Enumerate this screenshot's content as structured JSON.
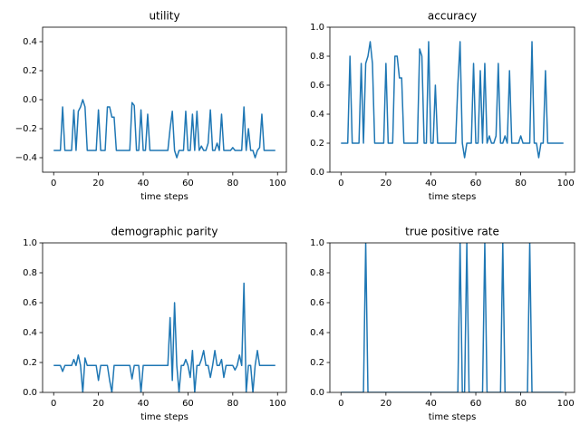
{
  "chart_data": [
    {
      "type": "line",
      "title": "utility",
      "xlabel": "time steps",
      "color": "#1f77b4",
      "xlim": [
        -4.95,
        103.95
      ],
      "xticks": [
        0,
        20,
        40,
        60,
        80,
        100
      ],
      "ylim": [
        -0.5,
        0.5
      ],
      "yticks": [
        {
          "value": -0.4,
          "label": "−0.4"
        },
        {
          "value": -0.2,
          "label": "−0.2"
        },
        {
          "value": 0,
          "label": "0.0"
        },
        0.2,
        0.4
      ],
      "values": [
        -0.35,
        -0.35,
        -0.35,
        -0.35,
        -0.05,
        -0.35,
        -0.35,
        -0.35,
        -0.35,
        -0.07,
        -0.35,
        -0.08,
        -0.05,
        0,
        -0.05,
        -0.35,
        -0.35,
        -0.35,
        -0.35,
        -0.35,
        -0.07,
        -0.35,
        -0.35,
        -0.35,
        -0.05,
        -0.05,
        -0.12,
        -0.12,
        -0.35,
        -0.35,
        -0.35,
        -0.35,
        -0.35,
        -0.35,
        -0.35,
        -0.02,
        -0.04,
        -0.35,
        -0.35,
        -0.07,
        -0.35,
        -0.35,
        -0.1,
        -0.35,
        -0.35,
        -0.35,
        -0.35,
        -0.35,
        -0.35,
        -0.35,
        -0.35,
        -0.35,
        -0.2,
        -0.08,
        -0.35,
        -0.4,
        -0.35,
        -0.35,
        -0.35,
        -0.08,
        -0.35,
        -0.35,
        -0.1,
        -0.35,
        -0.08,
        -0.35,
        -0.32,
        -0.35,
        -0.35,
        -0.3,
        -0.07,
        -0.35,
        -0.35,
        -0.3,
        -0.35,
        -0.1,
        -0.35,
        -0.35,
        -0.35,
        -0.35,
        -0.33,
        -0.35,
        -0.35,
        -0.35,
        -0.35,
        -0.05,
        -0.35,
        -0.2,
        -0.35,
        -0.35,
        -0.4,
        -0.35,
        -0.33,
        -0.1,
        -0.35,
        -0.35,
        -0.35,
        -0.35,
        -0.35,
        -0.35
      ]
    },
    {
      "type": "line",
      "title": "accuracy",
      "xlabel": "time steps",
      "color": "#1f77b4",
      "xlim": [
        -4.95,
        103.95
      ],
      "xticks": [
        0,
        20,
        40,
        60,
        80,
        100
      ],
      "ylim": [
        0,
        1
      ],
      "yticks": [
        {
          "value": 0,
          "label": "0.0"
        },
        0.2,
        0.4,
        0.6,
        0.8,
        {
          "value": 1,
          "label": "1.0"
        }
      ],
      "values": [
        0.2,
        0.2,
        0.2,
        0.2,
        0.8,
        0.2,
        0.2,
        0.2,
        0.2,
        0.75,
        0.2,
        0.75,
        0.8,
        0.9,
        0.75,
        0.2,
        0.2,
        0.2,
        0.2,
        0.2,
        0.75,
        0.2,
        0.2,
        0.2,
        0.8,
        0.8,
        0.65,
        0.65,
        0.2,
        0.2,
        0.2,
        0.2,
        0.2,
        0.2,
        0.2,
        0.85,
        0.8,
        0.2,
        0.2,
        0.9,
        0.2,
        0.2,
        0.6,
        0.2,
        0.2,
        0.2,
        0.2,
        0.2,
        0.2,
        0.2,
        0.2,
        0.2,
        0.6,
        0.9,
        0.2,
        0.1,
        0.2,
        0.2,
        0.2,
        0.75,
        0.2,
        0.2,
        0.7,
        0.2,
        0.75,
        0.2,
        0.25,
        0.2,
        0.2,
        0.25,
        0.75,
        0.2,
        0.2,
        0.25,
        0.2,
        0.7,
        0.2,
        0.2,
        0.2,
        0.2,
        0.25,
        0.2,
        0.2,
        0.2,
        0.2,
        0.9,
        0.2,
        0.2,
        0.1,
        0.2,
        0.2,
        0.7,
        0.2,
        0.2,
        0.2,
        0.2,
        0.2,
        0.2,
        0.2,
        0.2
      ]
    },
    {
      "type": "line",
      "title": "demographic parity",
      "xlabel": "time steps",
      "color": "#1f77b4",
      "xlim": [
        -4.95,
        103.95
      ],
      "xticks": [
        0,
        20,
        40,
        60,
        80,
        100
      ],
      "ylim": [
        0,
        1
      ],
      "yticks": [
        {
          "value": 0,
          "label": "0.0"
        },
        0.2,
        0.4,
        0.6,
        0.8,
        {
          "value": 1,
          "label": "1.0"
        }
      ],
      "values": [
        0.18,
        0.18,
        0.18,
        0.18,
        0.14,
        0.18,
        0.18,
        0.18,
        0.18,
        0.22,
        0.18,
        0.25,
        0.18,
        0,
        0.23,
        0.18,
        0.18,
        0.18,
        0.18,
        0.18,
        0.08,
        0.18,
        0.18,
        0.18,
        0.18,
        0.08,
        0,
        0.18,
        0.18,
        0.18,
        0.18,
        0.18,
        0.18,
        0.18,
        0.18,
        0.09,
        0.18,
        0.18,
        0.18,
        0,
        0.18,
        0.18,
        0.18,
        0.18,
        0.18,
        0.18,
        0.18,
        0.18,
        0.18,
        0.18,
        0.18,
        0.18,
        0.5,
        0.08,
        0.6,
        0.18,
        0,
        0.18,
        0.18,
        0.22,
        0.18,
        0.1,
        0.28,
        0,
        0.18,
        0.18,
        0.22,
        0.28,
        0.18,
        0.18,
        0.1,
        0.18,
        0.28,
        0.18,
        0.18,
        0.22,
        0.1,
        0.18,
        0.18,
        0.18,
        0.18,
        0.15,
        0.18,
        0.25,
        0.18,
        0.73,
        0,
        0.18,
        0.18,
        0,
        0.18,
        0.28,
        0.18,
        0.18,
        0.18,
        0.18,
        0.18,
        0.18,
        0.18,
        0.18
      ]
    },
    {
      "type": "line",
      "title": "true positive rate",
      "xlabel": "time steps",
      "color": "#1f77b4",
      "xlim": [
        -4.95,
        103.95
      ],
      "xticks": [
        0,
        20,
        40,
        60,
        80,
        100
      ],
      "ylim": [
        0,
        1
      ],
      "yticks": [
        {
          "value": 0,
          "label": "0.0"
        },
        0.2,
        0.4,
        0.6,
        0.8,
        {
          "value": 1,
          "label": "1.0"
        }
      ],
      "values": [
        0,
        0,
        0,
        0,
        0,
        0,
        0,
        0,
        0,
        0,
        0,
        1,
        0,
        0,
        0,
        0,
        0,
        0,
        0,
        0,
        0,
        0,
        0,
        0,
        0,
        0,
        0,
        0,
        0,
        0,
        0,
        0,
        0,
        0,
        0,
        0,
        0,
        0,
        0,
        0,
        0,
        0,
        0,
        0,
        0,
        0,
        0,
        0,
        0,
        0,
        0,
        0,
        0,
        1,
        0,
        0,
        1,
        0,
        0,
        0,
        0,
        0,
        0,
        0,
        1,
        0,
        0,
        0,
        0,
        0,
        0,
        0,
        1,
        0,
        0,
        0,
        0,
        0,
        0,
        0,
        0,
        0,
        0,
        0,
        1,
        0,
        0,
        0,
        0,
        0,
        0,
        0,
        0,
        0,
        0,
        0,
        0,
        0,
        0,
        0
      ]
    }
  ]
}
